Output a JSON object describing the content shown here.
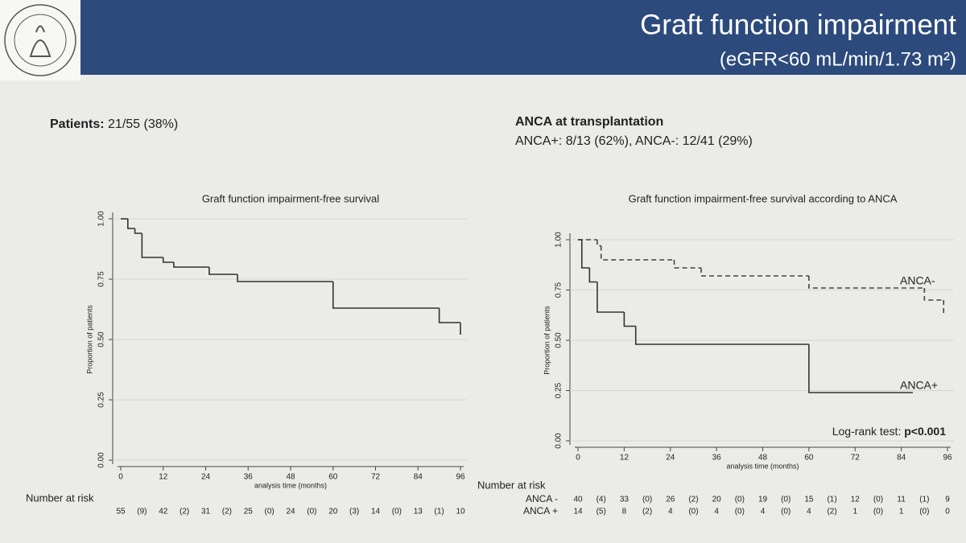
{
  "header": {
    "title": "Graft function impairment",
    "subtitle": "(eGFR<60 mL/min/1.73 m²)"
  },
  "left_text": {
    "label": "Patients:",
    "value": "21/55 (38%)"
  },
  "right_text": {
    "heading": "ANCA at transplantation",
    "detail": "ANCA+: 8/13 (62%), ANCA-: 12/41 (29%)"
  },
  "chart_data": [
    {
      "type": "step",
      "title": "Graft function impairment-free survival",
      "x_label": "analysis time (months)",
      "y_label": "Proportion of patients",
      "xlim": [
        0,
        96
      ],
      "xticks": [
        0,
        12,
        24,
        36,
        48,
        60,
        72,
        84,
        96
      ],
      "ylim": [
        0,
        1
      ],
      "yticks": [
        {
          "value": 0,
          "label": "0.00"
        },
        {
          "value": 0.25,
          "label": "0.25"
        },
        {
          "value": 0.5,
          "label": "0.50"
        },
        {
          "value": 0.75,
          "label": "0.75"
        },
        {
          "value": 1,
          "label": "1.00"
        }
      ],
      "grid": true,
      "series": [
        {
          "name": null,
          "color": "#333333",
          "dashed": false,
          "x": [
            0,
            2,
            4,
            6,
            12,
            15,
            25,
            33,
            60,
            90,
            96
          ],
          "y": [
            1,
            0.96,
            0.94,
            0.84,
            0.82,
            0.8,
            0.77,
            0.74,
            0.63,
            0.57,
            0.52
          ]
        }
      ],
      "risk_table": {
        "label": "Number at risk",
        "rows": [
          {
            "name": null,
            "values": [
              55,
              42,
              31,
              25,
              24,
              20,
              14,
              13,
              10
            ],
            "censored": [
              "(9)",
              "(2)",
              "(2)",
              "(0)",
              "(0)",
              "(3)",
              "(0)",
              "(1)"
            ]
          }
        ]
      }
    },
    {
      "type": "step",
      "title": "Graft function impairment-free survival according to ANCA",
      "x_label": "analysis time (months)",
      "y_label": "Proportion of patients",
      "xlim": [
        0,
        96
      ],
      "xticks": [
        0,
        12,
        24,
        36,
        48,
        60,
        72,
        84,
        96
      ],
      "ylim": [
        0,
        1
      ],
      "yticks": [
        {
          "value": 0,
          "label": "0.00"
        },
        {
          "value": 0.25,
          "label": "0.25"
        },
        {
          "value": 0.5,
          "label": "0.50"
        },
        {
          "value": 0.75,
          "label": "0.75"
        },
        {
          "value": 1,
          "label": "1.00"
        }
      ],
      "grid": true,
      "series": [
        {
          "name": "ANCA-",
          "color": "#444444",
          "dashed": true,
          "x": [
            0,
            5,
            6,
            25,
            32,
            60,
            90,
            95
          ],
          "y": [
            1,
            0.97,
            0.9,
            0.86,
            0.82,
            0.76,
            0.7,
            0.62
          ]
        },
        {
          "name": "ANCA+",
          "color": "#333333",
          "dashed": false,
          "x": [
            0,
            1,
            3,
            5,
            12,
            15,
            60,
            87
          ],
          "y": [
            1,
            0.86,
            0.79,
            0.64,
            0.57,
            0.48,
            0.24,
            0.24
          ]
        }
      ],
      "annotation": {
        "text": "Log-rank test:",
        "value": "p<0.001"
      },
      "risk_table": {
        "label": "Number at risk",
        "rows": [
          {
            "name": "ANCA -",
            "values": [
              40,
              33,
              26,
              20,
              19,
              15,
              12,
              11,
              9
            ],
            "censored": [
              "(4)",
              "(0)",
              "(2)",
              "(0)",
              "(0)",
              "(1)",
              "(0)",
              "(1)"
            ]
          },
          {
            "name": "ANCA +",
            "values": [
              14,
              8,
              4,
              4,
              4,
              4,
              1,
              1,
              0
            ],
            "censored": [
              "(5)",
              "(2)",
              "(0)",
              "(0)",
              "(0)",
              "(2)",
              "(0)",
              "(0)"
            ]
          }
        ]
      }
    }
  ]
}
